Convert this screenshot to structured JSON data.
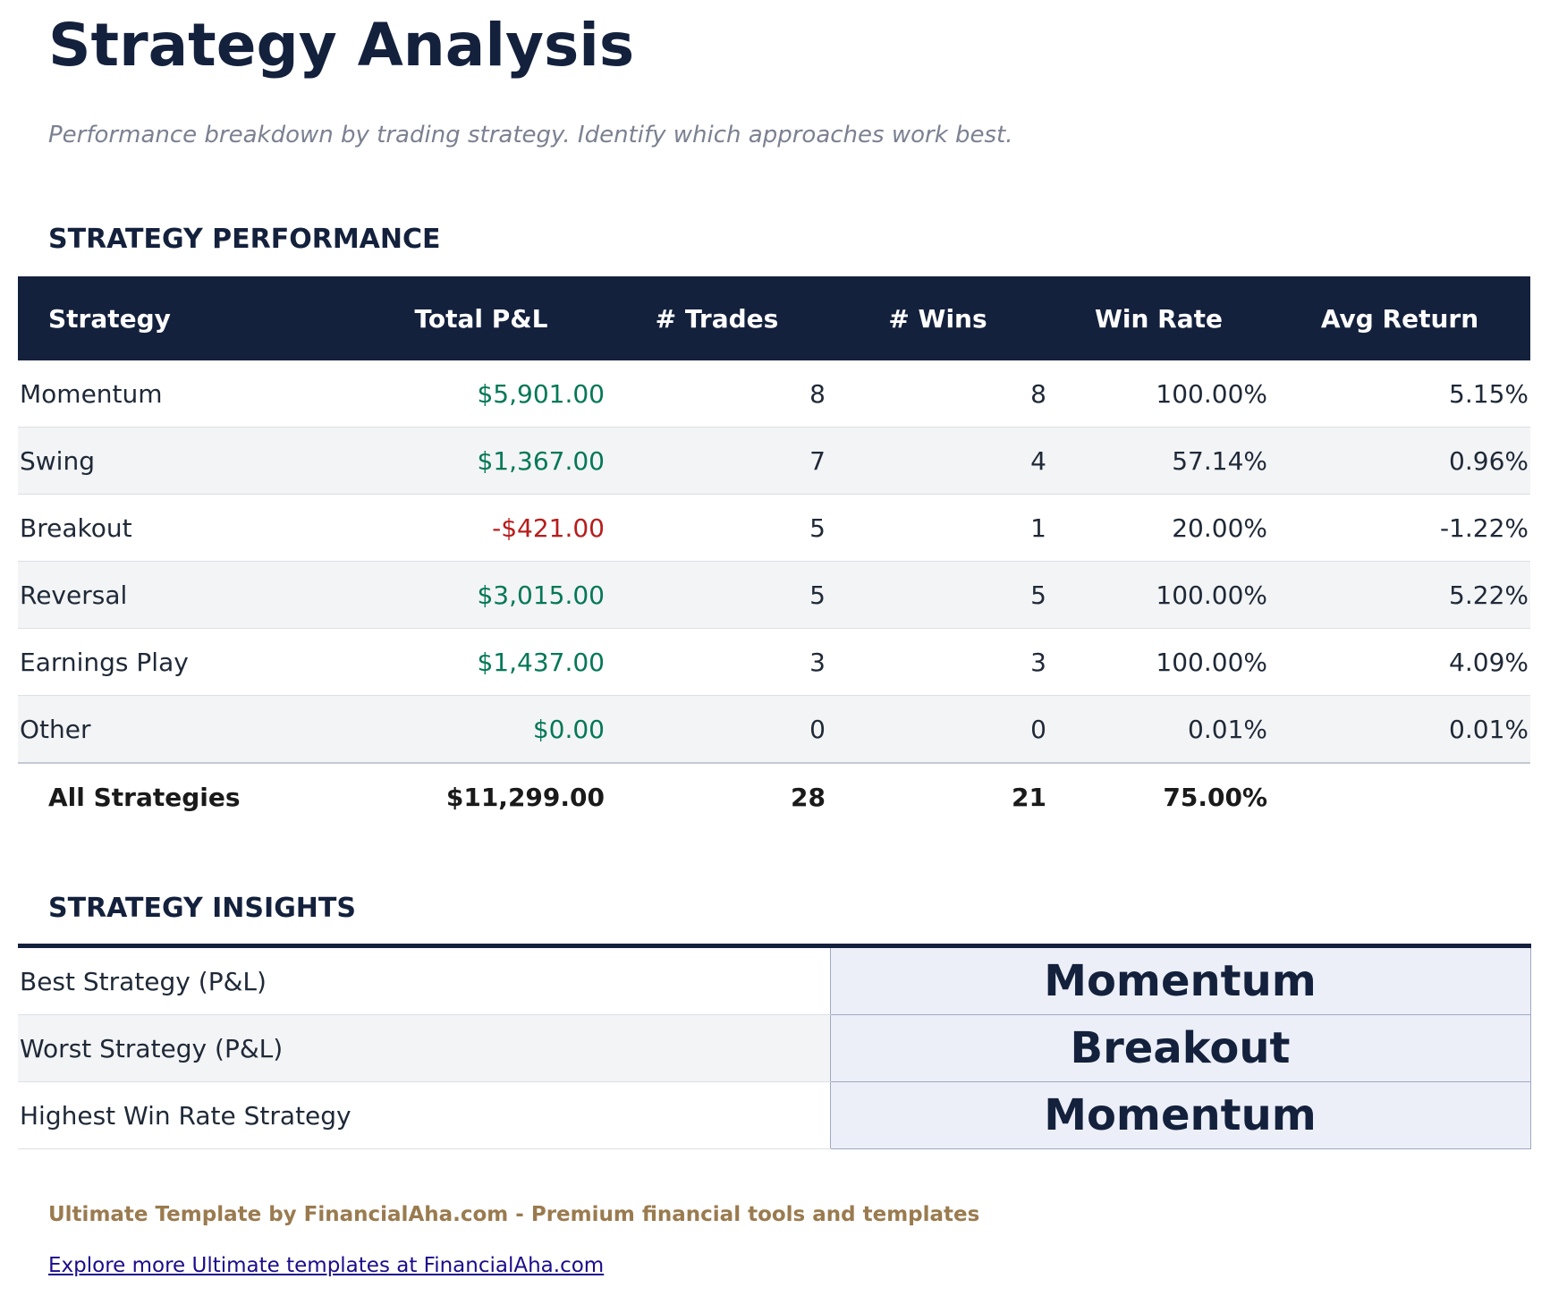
{
  "header": {
    "title": "Strategy Analysis",
    "subtitle": "Performance breakdown by trading strategy. Identify which approaches work best."
  },
  "performance": {
    "heading": "STRATEGY PERFORMANCE",
    "columns": [
      "Strategy",
      "Total P&L",
      "# Trades",
      "# Wins",
      "Win Rate",
      "Avg Return"
    ],
    "rows": [
      [
        "Momentum",
        "$5,901.00",
        "8",
        "8",
        "100.00%",
        "5.15%"
      ],
      [
        "Swing",
        "$1,367.00",
        "7",
        "4",
        "57.14%",
        "0.96%"
      ],
      [
        "Breakout",
        "-$421.00",
        "5",
        "1",
        "20.00%",
        "-1.22%"
      ],
      [
        "Reversal",
        "$3,015.00",
        "5",
        "5",
        "100.00%",
        "5.22%"
      ],
      [
        "Earnings Play",
        "$1,437.00",
        "3",
        "3",
        "100.00%",
        "4.09%"
      ],
      [
        "Other",
        "$0.00",
        "0",
        "0",
        "0.01%",
        "0.01%"
      ]
    ],
    "total": [
      "All Strategies",
      "$11,299.00",
      "28",
      "21",
      "75.00%"
    ]
  },
  "insights": {
    "heading": "STRATEGY INSIGHTS",
    "rows": [
      [
        "Best Strategy (P&L)",
        "Momentum"
      ],
      [
        "Worst Strategy (P&L)",
        "Breakout"
      ],
      [
        "Highest Win Rate Strategy",
        "Momentum"
      ]
    ]
  },
  "footer": {
    "text": "Ultimate Template by FinancialAha.com - Premium financial tools and templates",
    "link": "Explore more Ultimate templates at FinancialAha.com"
  }
}
